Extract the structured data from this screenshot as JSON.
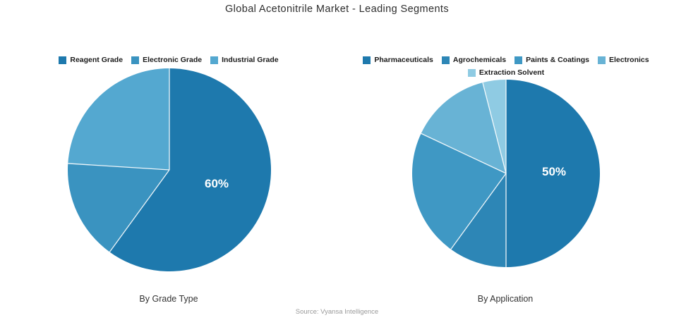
{
  "title": "Global Acetonitrile Market - Leading Segments",
  "source": "Source: Vyansa Intelligence",
  "chart_data": [
    {
      "type": "pie",
      "title": "By Grade Type",
      "labels": [
        "Reagent Grade",
        "Electronic Grade",
        "Industrial Grade"
      ],
      "values": [
        60,
        16,
        24
      ],
      "colors": [
        "#1e79ad",
        "#3a93c0",
        "#54a8d0"
      ],
      "value_label": {
        "text": "60%",
        "slice": "Reagent Grade"
      },
      "legend_position": "top",
      "legend_wrap_after": 3,
      "start_angle_deg": 0,
      "direction": "clockwise"
    },
    {
      "type": "pie",
      "title": "By Application",
      "labels": [
        "Pharmaceuticals",
        "Agrochemicals",
        "Paints & Coatings",
        "Electronics",
        "Extraction Solvent"
      ],
      "values": [
        50,
        10,
        22,
        14,
        4
      ],
      "colors": [
        "#1e79ad",
        "#2d86b6",
        "#3f98c4",
        "#68b3d5",
        "#8fcbe3"
      ],
      "value_label": {
        "text": "50%",
        "slice": "Pharmaceuticals"
      },
      "legend_position": "top",
      "legend_wrap_after": 4,
      "start_angle_deg": 0,
      "direction": "clockwise"
    }
  ]
}
